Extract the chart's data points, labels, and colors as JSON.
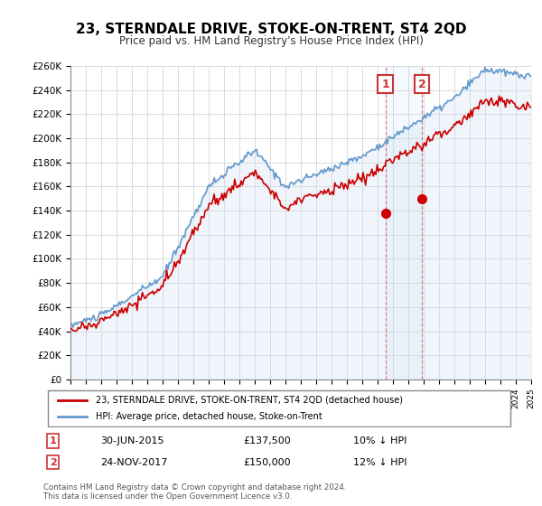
{
  "title": "23, STERNDALE DRIVE, STOKE-ON-TRENT, ST4 2QD",
  "subtitle": "Price paid vs. HM Land Registry's House Price Index (HPI)",
  "legend_line1": "23, STERNDALE DRIVE, STOKE-ON-TRENT, ST4 2QD (detached house)",
  "legend_line2": "HPI: Average price, detached house, Stoke-on-Trent",
  "annotation1_label": "1",
  "annotation1_date": "30-JUN-2015",
  "annotation1_price": "£137,500",
  "annotation1_hpi": "10% ↓ HPI",
  "annotation2_label": "2",
  "annotation2_date": "24-NOV-2017",
  "annotation2_price": "£150,000",
  "annotation2_hpi": "12% ↓ HPI",
  "footer": "Contains HM Land Registry data © Crown copyright and database right 2024.\nThis data is licensed under the Open Government Licence v3.0.",
  "ylabel_ticks": [
    "£0",
    "£20K",
    "£40K",
    "£60K",
    "£80K",
    "£100K",
    "£120K",
    "£140K",
    "£160K",
    "£180K",
    "£200K",
    "£220K",
    "£240K",
    "£260K"
  ],
  "ytick_values": [
    0,
    20000,
    40000,
    60000,
    80000,
    100000,
    120000,
    140000,
    160000,
    180000,
    200000,
    220000,
    240000,
    260000
  ],
  "red_line_color": "#cc0000",
  "blue_line_color": "#6699cc",
  "blue_fill_color": "#cce0f0",
  "dot1_color": "#cc0000",
  "dot2_color": "#cc0000",
  "annotation_box_color": "#cc3333",
  "shaded_region_color": "#ddeeff",
  "purchase1_year": 2015.5,
  "purchase1_price": 137500,
  "purchase2_year": 2017.9,
  "purchase2_price": 150000
}
